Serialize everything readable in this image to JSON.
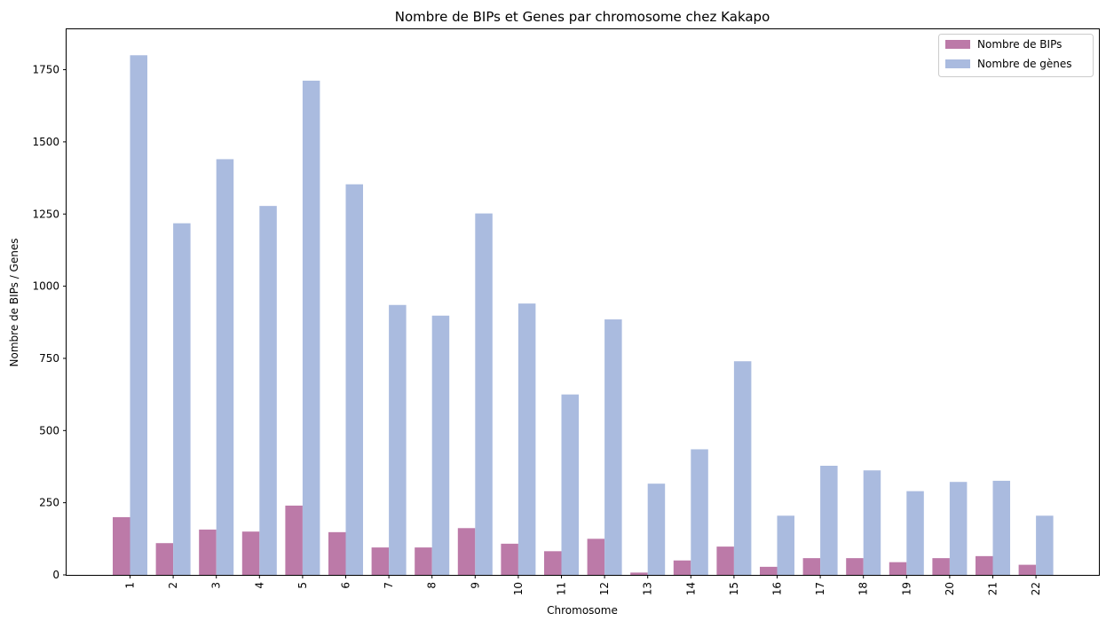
{
  "chart_data": {
    "type": "bar",
    "title": "Nombre de BIPs et Genes par chromosome chez Kakapo",
    "xlabel": "Chromosome",
    "ylabel": "Nombre de BIPs / Genes",
    "categories": [
      "1",
      "2",
      "3",
      "4",
      "5",
      "6",
      "7",
      "8",
      "9",
      "10",
      "11",
      "12",
      "13",
      "14",
      "15",
      "16",
      "17",
      "18",
      "19",
      "20",
      "21",
      "22"
    ],
    "ylim": [
      0,
      1890
    ],
    "yticks": [
      0,
      250,
      500,
      750,
      1000,
      1250,
      1500,
      1750
    ],
    "grid": false,
    "legend_position": "top-right",
    "series": [
      {
        "name": "Nombre de BIPs",
        "color": "#bc7aa8",
        "values": [
          200,
          110,
          157,
          150,
          240,
          148,
          95,
          95,
          162,
          108,
          82,
          125,
          8,
          50,
          98,
          28,
          58,
          58,
          44,
          58,
          65,
          35
        ]
      },
      {
        "name": "Nombre de gènes",
        "color": "#aabbdf",
        "values": [
          1800,
          1218,
          1440,
          1278,
          1712,
          1353,
          935,
          898,
          1252,
          940,
          625,
          885,
          316,
          435,
          740,
          205,
          378,
          362,
          290,
          322,
          326,
          205
        ]
      }
    ]
  }
}
